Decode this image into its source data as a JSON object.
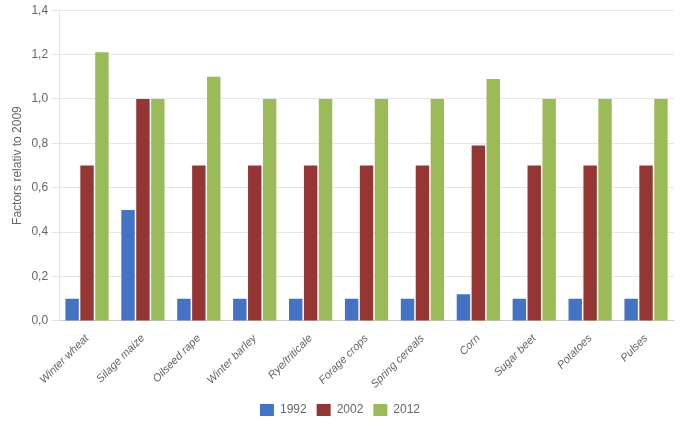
{
  "chart_data": {
    "type": "bar",
    "categories": [
      "Winter wheat",
      "Silage maize",
      "Oilseed rape",
      "Winter barley",
      "Rye/triticale",
      "Forage crops",
      "Spring cereals",
      "Corn",
      "Sugar beet",
      "Potatoes",
      "Pulses"
    ],
    "series": [
      {
        "name": "1992",
        "color": "#4472C4",
        "values": [
          0.1,
          0.5,
          0.1,
          0.1,
          0.1,
          0.1,
          0.1,
          0.12,
          0.1,
          0.1,
          0.1
        ]
      },
      {
        "name": "2002",
        "color": "#943634",
        "values": [
          0.7,
          1.0,
          0.7,
          0.7,
          0.7,
          0.7,
          0.7,
          0.79,
          0.7,
          0.7,
          0.7
        ]
      },
      {
        "name": "2012",
        "color": "#9BBB59",
        "values": [
          1.21,
          1.0,
          1.1,
          1.0,
          1.0,
          1.0,
          1.0,
          1.09,
          1.0,
          1.0,
          1.0
        ]
      }
    ],
    "ylabel": "Factors relativ to 2009",
    "ylim": [
      0,
      1.4
    ],
    "yticks": [
      {
        "value": 0.0,
        "label": "0,0"
      },
      {
        "value": 0.2,
        "label": "0,2"
      },
      {
        "value": 0.4,
        "label": "0,4"
      },
      {
        "value": 0.6,
        "label": "0,6"
      },
      {
        "value": 0.8,
        "label": "0,8"
      },
      {
        "value": 1.0,
        "label": "1,0"
      },
      {
        "value": 1.2,
        "label": "1,2"
      },
      {
        "value": 1.4,
        "label": "1,4"
      }
    ],
    "grid": "y",
    "legend": "bottom"
  }
}
